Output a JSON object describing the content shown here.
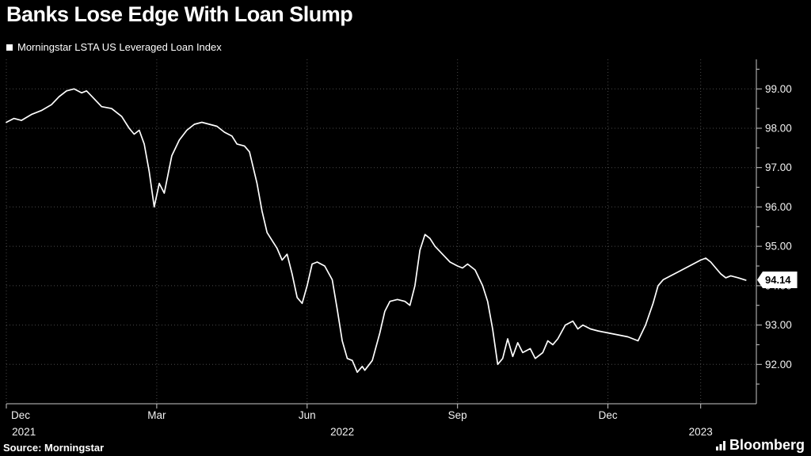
{
  "title": "Banks Lose Edge With Loan Slump",
  "legend": {
    "label": "Morningstar LSTA US Leveraged Loan Index"
  },
  "footer": {
    "source": "Source: Morningstar",
    "logo": "Bloomberg"
  },
  "colors": {
    "background": "#000000",
    "line": "#ffffff",
    "grid": "#4a4a4a",
    "axis": "#c8c8c8",
    "text": "#ffffff",
    "value_box_bg": "#ffffff",
    "value_box_text": "#000000"
  },
  "chart_data": {
    "type": "line",
    "title": "Banks Lose Edge With Loan Slump",
    "series_name": "Morningstar LSTA US Leveraged Loan Index",
    "x_unit_note": "months since 2021-12-01",
    "xlim": [
      0,
      14.96
    ],
    "ylim": [
      91.0,
      99.75
    ],
    "y_ticks": [
      92,
      93,
      94,
      95,
      96,
      97,
      98,
      99
    ],
    "y_tick_labels": [
      "92.00",
      "93.00",
      "94.00",
      "95.00",
      "96.00",
      "97.00",
      "98.00",
      "99.00"
    ],
    "grid": true,
    "legend_position": "top-left",
    "x_ticks": [
      {
        "m": 0,
        "month": "Dec"
      },
      {
        "m": 3,
        "month": "Mar"
      },
      {
        "m": 6,
        "month": "Jun"
      },
      {
        "m": 9,
        "month": "Sep"
      },
      {
        "m": 12,
        "month": "Dec"
      },
      {
        "m": 13.85,
        "month": ""
      }
    ],
    "year_labels": [
      {
        "m": 0.35,
        "label": "2021"
      },
      {
        "m": 6.7,
        "label": "2022"
      },
      {
        "m": 13.85,
        "label": "2023"
      }
    ],
    "last_value": 94.14,
    "last_value_label": "94.14",
    "points": [
      [
        0.0,
        98.15
      ],
      [
        0.15,
        98.25
      ],
      [
        0.3,
        98.2
      ],
      [
        0.5,
        98.35
      ],
      [
        0.7,
        98.45
      ],
      [
        0.9,
        98.6
      ],
      [
        1.05,
        98.8
      ],
      [
        1.2,
        98.95
      ],
      [
        1.35,
        99.0
      ],
      [
        1.5,
        98.9
      ],
      [
        1.6,
        98.95
      ],
      [
        1.75,
        98.75
      ],
      [
        1.9,
        98.55
      ],
      [
        2.1,
        98.5
      ],
      [
        2.3,
        98.3
      ],
      [
        2.45,
        98.0
      ],
      [
        2.55,
        97.85
      ],
      [
        2.65,
        97.95
      ],
      [
        2.75,
        97.6
      ],
      [
        2.85,
        96.9
      ],
      [
        2.95,
        96.0
      ],
      [
        3.05,
        96.6
      ],
      [
        3.15,
        96.35
      ],
      [
        3.3,
        97.3
      ],
      [
        3.45,
        97.7
      ],
      [
        3.6,
        97.95
      ],
      [
        3.75,
        98.1
      ],
      [
        3.9,
        98.15
      ],
      [
        4.05,
        98.1
      ],
      [
        4.2,
        98.05
      ],
      [
        4.35,
        97.9
      ],
      [
        4.5,
        97.8
      ],
      [
        4.6,
        97.6
      ],
      [
        4.75,
        97.55
      ],
      [
        4.85,
        97.4
      ],
      [
        5.0,
        96.6
      ],
      [
        5.1,
        95.9
      ],
      [
        5.2,
        95.35
      ],
      [
        5.3,
        95.15
      ],
      [
        5.4,
        94.95
      ],
      [
        5.5,
        94.65
      ],
      [
        5.6,
        94.8
      ],
      [
        5.7,
        94.3
      ],
      [
        5.8,
        93.7
      ],
      [
        5.9,
        93.55
      ],
      [
        6.0,
        94.0
      ],
      [
        6.1,
        94.55
      ],
      [
        6.2,
        94.6
      ],
      [
        6.35,
        94.5
      ],
      [
        6.5,
        94.15
      ],
      [
        6.6,
        93.4
      ],
      [
        6.7,
        92.6
      ],
      [
        6.8,
        92.15
      ],
      [
        6.9,
        92.1
      ],
      [
        7.0,
        91.8
      ],
      [
        7.1,
        91.95
      ],
      [
        7.15,
        91.85
      ],
      [
        7.3,
        92.1
      ],
      [
        7.45,
        92.8
      ],
      [
        7.55,
        93.35
      ],
      [
        7.65,
        93.6
      ],
      [
        7.8,
        93.65
      ],
      [
        7.95,
        93.6
      ],
      [
        8.05,
        93.5
      ],
      [
        8.15,
        94.0
      ],
      [
        8.25,
        94.9
      ],
      [
        8.35,
        95.3
      ],
      [
        8.45,
        95.2
      ],
      [
        8.55,
        95.0
      ],
      [
        8.7,
        94.8
      ],
      [
        8.85,
        94.6
      ],
      [
        9.0,
        94.5
      ],
      [
        9.1,
        94.45
      ],
      [
        9.2,
        94.55
      ],
      [
        9.35,
        94.4
      ],
      [
        9.5,
        94.0
      ],
      [
        9.6,
        93.6
      ],
      [
        9.7,
        92.9
      ],
      [
        9.8,
        92.0
      ],
      [
        9.9,
        92.15
      ],
      [
        10.0,
        92.65
      ],
      [
        10.1,
        92.2
      ],
      [
        10.2,
        92.55
      ],
      [
        10.3,
        92.3
      ],
      [
        10.45,
        92.4
      ],
      [
        10.55,
        92.15
      ],
      [
        10.7,
        92.3
      ],
      [
        10.8,
        92.6
      ],
      [
        10.9,
        92.5
      ],
      [
        11.0,
        92.65
      ],
      [
        11.15,
        93.0
      ],
      [
        11.3,
        93.1
      ],
      [
        11.4,
        92.9
      ],
      [
        11.5,
        93.0
      ],
      [
        11.65,
        92.9
      ],
      [
        11.8,
        92.85
      ],
      [
        12.0,
        92.8
      ],
      [
        12.2,
        92.75
      ],
      [
        12.4,
        92.7
      ],
      [
        12.6,
        92.6
      ],
      [
        12.75,
        93.0
      ],
      [
        12.9,
        93.55
      ],
      [
        13.0,
        94.0
      ],
      [
        13.1,
        94.15
      ],
      [
        13.25,
        94.25
      ],
      [
        13.4,
        94.35
      ],
      [
        13.55,
        94.45
      ],
      [
        13.7,
        94.55
      ],
      [
        13.85,
        94.65
      ],
      [
        13.95,
        94.7
      ],
      [
        14.05,
        94.6
      ],
      [
        14.15,
        94.45
      ],
      [
        14.25,
        94.3
      ],
      [
        14.35,
        94.2
      ],
      [
        14.45,
        94.25
      ],
      [
        14.6,
        94.2
      ],
      [
        14.75,
        94.14
      ]
    ]
  }
}
